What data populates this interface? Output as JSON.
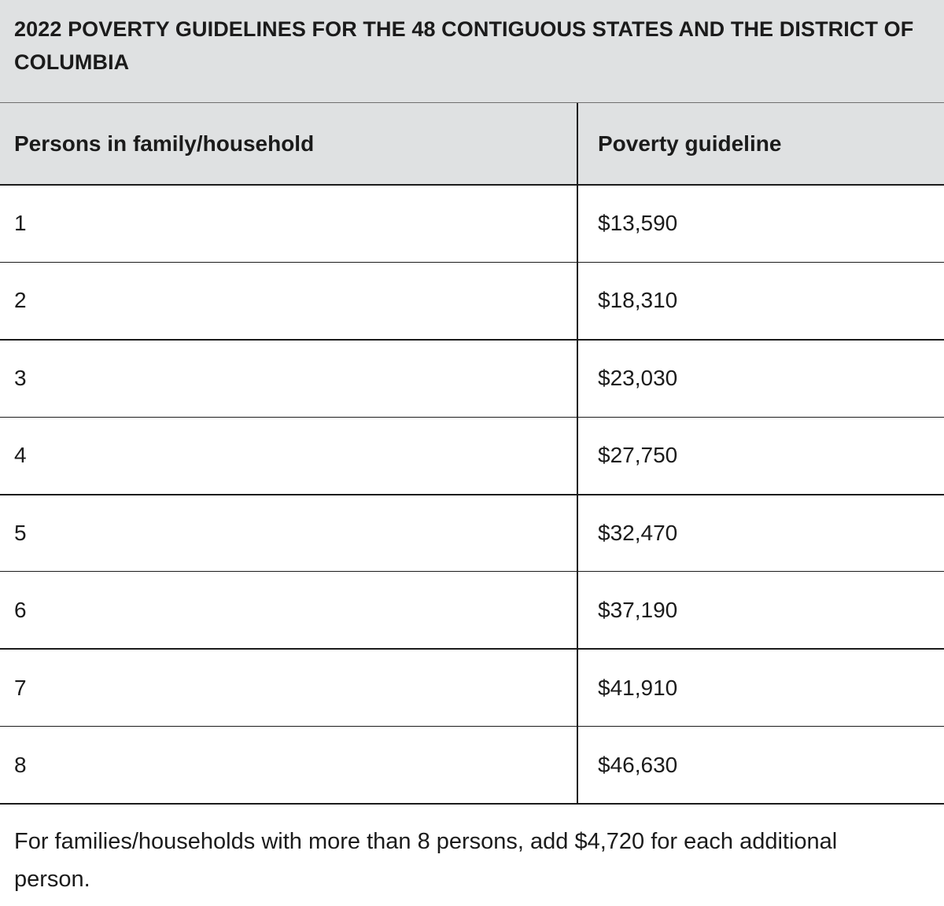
{
  "table": {
    "caption": "2022 POVERTY GUIDELINES FOR THE 48 CONTIGUOUS STATES AND THE DISTRICT OF COLUMBIA",
    "headers": [
      "Persons in family/household",
      "Poverty guideline"
    ],
    "rows": [
      {
        "persons": "1",
        "guideline": "$13,590"
      },
      {
        "persons": "2",
        "guideline": "$18,310"
      },
      {
        "persons": "3",
        "guideline": "$23,030"
      },
      {
        "persons": "4",
        "guideline": "$27,750"
      },
      {
        "persons": "5",
        "guideline": "$32,470"
      },
      {
        "persons": "6",
        "guideline": "$37,190"
      },
      {
        "persons": "7",
        "guideline": "$41,910"
      },
      {
        "persons": "8",
        "guideline": "$46,630"
      }
    ]
  },
  "footnote": "For families/households with more than 8 persons, add $4,720 for each additional person."
}
